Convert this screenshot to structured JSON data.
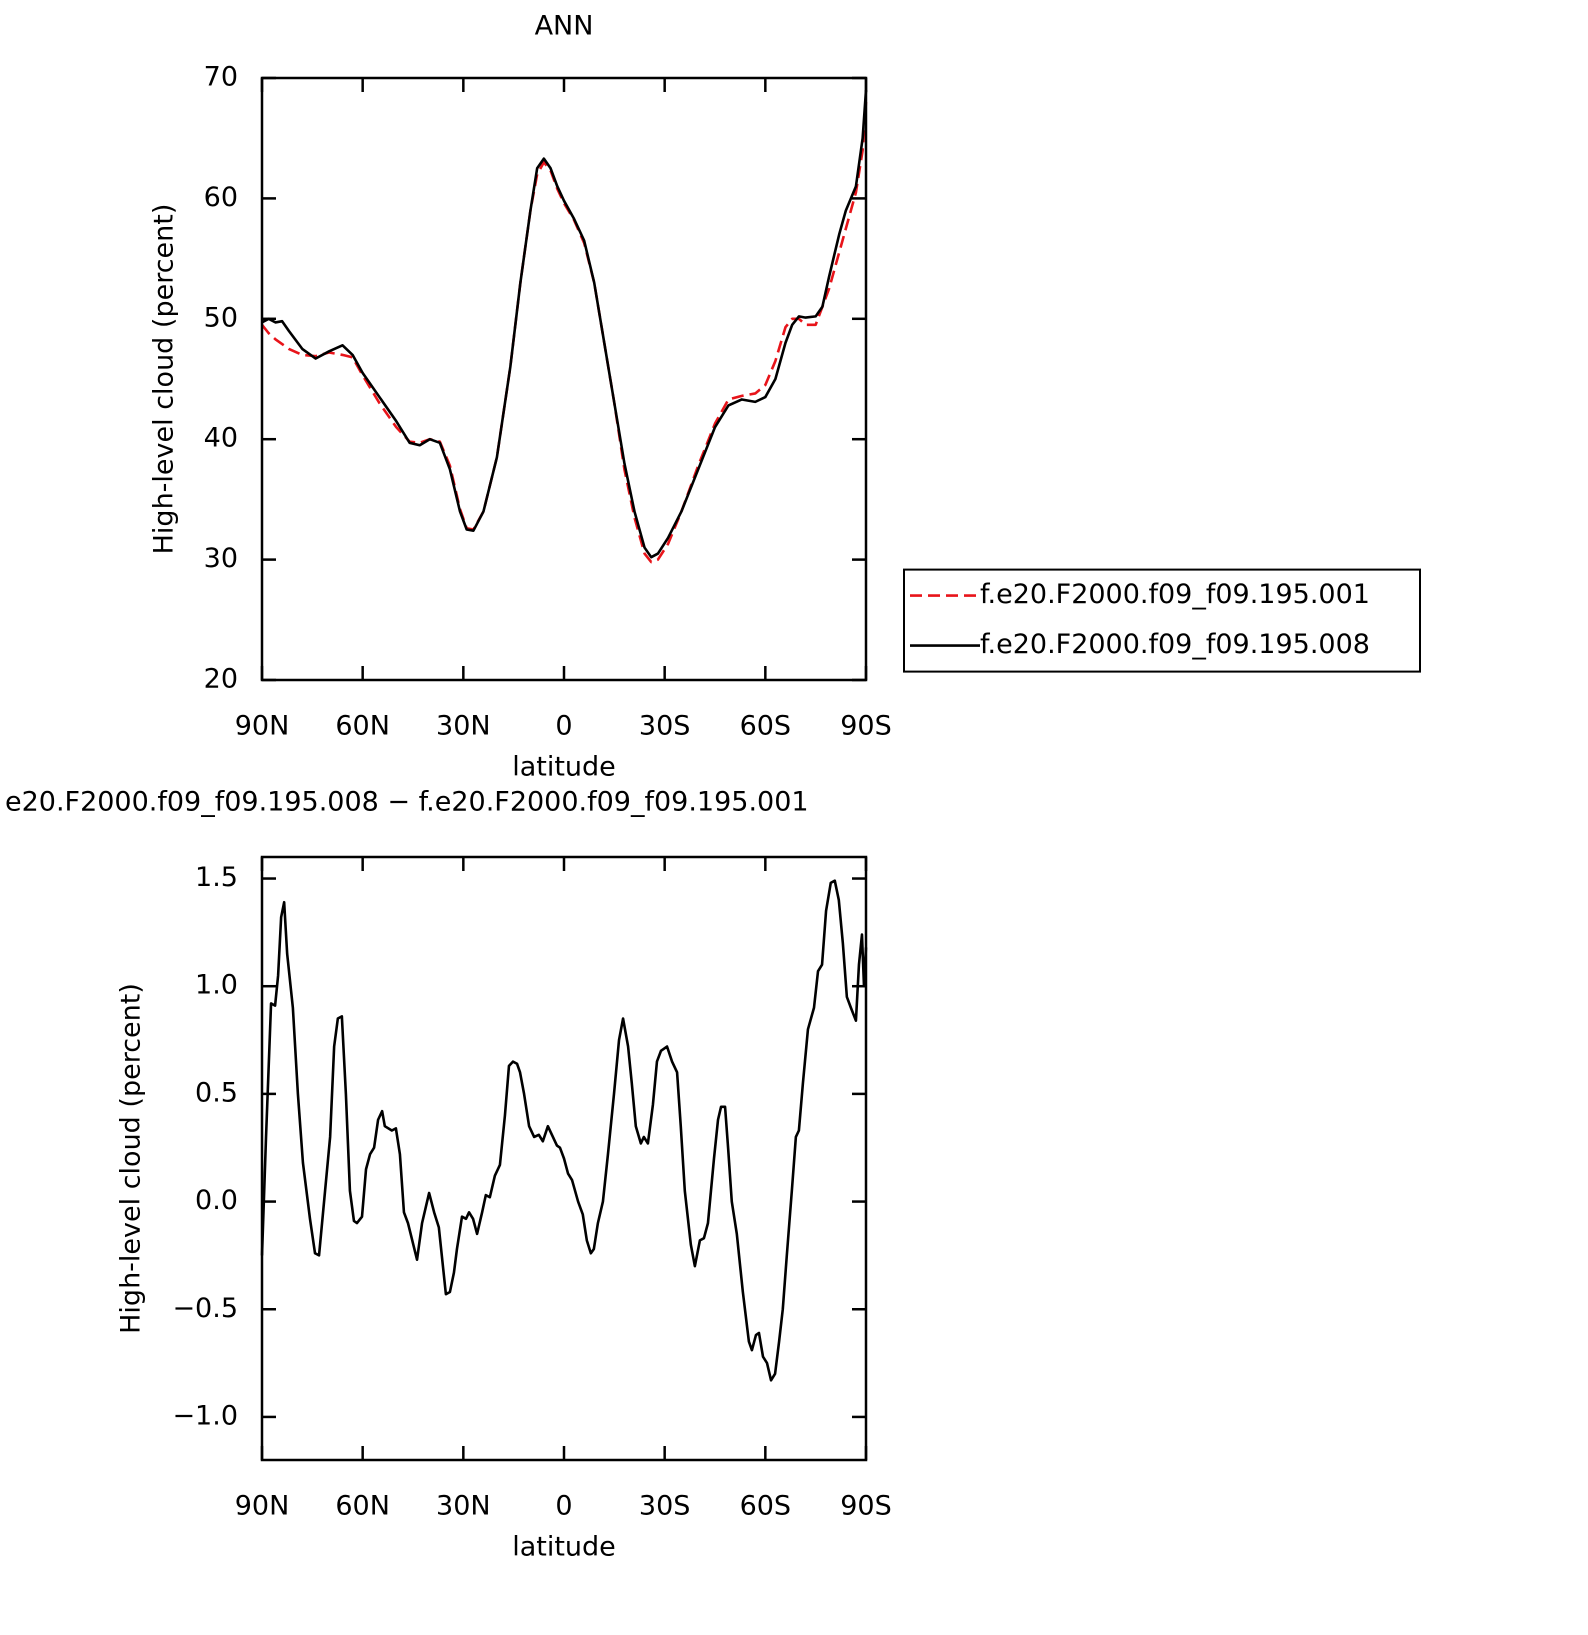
{
  "chart_data": [
    {
      "type": "line",
      "title": "ANN",
      "xlabel": "latitude",
      "ylabel": "High-level cloud (percent)",
      "xlim": [
        90,
        -90
      ],
      "xticks": [
        {
          "value": 90,
          "label": "90N"
        },
        {
          "value": 60,
          "label": "60N"
        },
        {
          "value": 30,
          "label": "30N"
        },
        0,
        {
          "value": -30,
          "label": "30S"
        },
        {
          "value": -60,
          "label": "60S"
        },
        {
          "value": -90,
          "label": "90S"
        }
      ],
      "ylim": [
        20,
        70
      ],
      "yticks": [
        20,
        30,
        40,
        50,
        60,
        70
      ],
      "legend": "right",
      "x": [
        90,
        88,
        86,
        84,
        82,
        78,
        74,
        70,
        66,
        63,
        60,
        55,
        50,
        46,
        43,
        40,
        37,
        34,
        31,
        29,
        27,
        24,
        20,
        16,
        13,
        10,
        8,
        6,
        4,
        2,
        0,
        -3,
        -6,
        -9,
        -12,
        -15,
        -18,
        -21,
        -24,
        -26,
        -28,
        -31,
        -35,
        -40,
        -45,
        -49,
        -53,
        -57,
        -60,
        -63,
        -66,
        -68,
        -70,
        -72,
        -75,
        -77,
        -79,
        -82,
        -84,
        -87,
        -89,
        -90
      ],
      "series": [
        {
          "name": "f.e20.F2000.f09_f09.195.001",
          "color": "#e8141a",
          "style": "dashed",
          "values": [
            49.5,
            48.8,
            48.3,
            47.9,
            47.5,
            47,
            46.9,
            47.2,
            47,
            46.8,
            45.3,
            43,
            41,
            39.8,
            39.7,
            40,
            39.8,
            37.8,
            34.2,
            32.6,
            32.5,
            34,
            38.5,
            46,
            53,
            59,
            62,
            63,
            62.3,
            60.8,
            59.6,
            58.2,
            56.3,
            53,
            48,
            43,
            37.5,
            33.5,
            30.5,
            29.8,
            30,
            31.3,
            34,
            37.8,
            41.3,
            43.3,
            43.6,
            43.8,
            44.5,
            46.5,
            49.3,
            50,
            50,
            49.5,
            49.5,
            51,
            52.5,
            55.5,
            57.5,
            60.5,
            64,
            68
          ]
        },
        {
          "name": "f.e20.F2000.f09_f09.195.008",
          "color": "#000000",
          "style": "solid",
          "values": [
            49.7,
            50,
            49.7,
            49.8,
            49,
            47.5,
            46.7,
            47.3,
            47.8,
            47,
            45.5,
            43.5,
            41.5,
            39.7,
            39.5,
            40,
            39.7,
            37.5,
            34,
            32.5,
            32.4,
            34,
            38.5,
            46,
            53,
            59,
            62.5,
            63.3,
            62.5,
            61,
            59.8,
            58.3,
            56.5,
            53,
            48,
            43,
            38,
            34,
            31,
            30.2,
            30.5,
            31.8,
            34,
            37.5,
            41,
            42.8,
            43.3,
            43.1,
            43.5,
            45,
            48,
            49.5,
            50.2,
            50.1,
            50.2,
            51,
            53.5,
            57,
            59,
            61,
            65,
            69
          ]
        }
      ]
    },
    {
      "type": "line",
      "title": "e20.F2000.f09_f09.195.008 − f.e20.F2000.f09_f09.195.001",
      "xlabel": "latitude",
      "ylabel": "High-level cloud (percent)",
      "xlim": [
        90,
        -90
      ],
      "xticks": [
        {
          "value": 90,
          "label": "90N"
        },
        {
          "value": 60,
          "label": "60N"
        },
        {
          "value": 30,
          "label": "30N"
        },
        0,
        {
          "value": -30,
          "label": "30S"
        },
        {
          "value": -60,
          "label": "60S"
        },
        {
          "value": -90,
          "label": "90S"
        }
      ],
      "ylim": [
        -1.2,
        1.6
      ],
      "yticks": [
        {
          "value": -1,
          "label": "−1.0"
        },
        {
          "value": -0.5,
          "label": "−0.5"
        },
        {
          "value": 0,
          "label": "0.0"
        },
        0.5,
        {
          "value": 1,
          "label": "1.0"
        },
        1.5
      ],
      "x": [
        90,
        88.8,
        87.3,
        86.1,
        85.2,
        84.3,
        83.4,
        82.5,
        80.8,
        79.3,
        77.8,
        75.7,
        74.2,
        73,
        71.2,
        69.7,
        68.5,
        67.4,
        66.2,
        65,
        63.8,
        62.6,
        61.7,
        60.2,
        59,
        57.8,
        56.6,
        55.4,
        54.2,
        53.4,
        51.3,
        50.1,
        48.9,
        47.7,
        46.5,
        43.8,
        42.3,
        40.2,
        38.7,
        37.3,
        35.2,
        34,
        32.8,
        31.9,
        30.4,
        29.2,
        28.3,
        27.1,
        25.9,
        24.4,
        23.3,
        22.1,
        20.6,
        19.1,
        17.6,
        16.4,
        15.2,
        14,
        13.1,
        11.9,
        10.4,
        8.9,
        7.5,
        6.3,
        4.8,
        3.6,
        2.1,
        1.2,
        0,
        -1.2,
        -2.4,
        -4.2,
        -5.6,
        -6.8,
        -8,
        -8.9,
        -10.1,
        -11.6,
        -13.1,
        -14.9,
        -16.4,
        -17.6,
        -19.1,
        -20.2,
        -21.4,
        -22.9,
        -23.8,
        -25,
        -26.5,
        -27.7,
        -28.9,
        -30.7,
        -32.2,
        -33.7,
        -34.8,
        -36,
        -37.8,
        -39,
        -40.5,
        -41.7,
        -42.9,
        -44.7,
        -45.9,
        -46.8,
        -48,
        -48.9,
        -50,
        -51.5,
        -53.3,
        -55.1,
        -56,
        -57.2,
        -58.1,
        -59.3,
        -60.5,
        -61.7,
        -62.9,
        -64.1,
        -65.2,
        -66.4,
        -67.9,
        -69.1,
        -70,
        -71.2,
        -72.7,
        -74.5,
        -75.7,
        -76.9,
        -78.1,
        -79.5,
        -80.7,
        -81.9,
        -83.1,
        -84.3,
        -85.5,
        -87,
        -87.9,
        -88.8,
        -89.4,
        -90
      ],
      "series": [
        {
          "color": "#000000",
          "style": "solid",
          "values": [
            -0.25,
            0.3,
            0.92,
            0.91,
            1.05,
            1.32,
            1.39,
            1.15,
            0.9,
            0.5,
            0.18,
            -0.08,
            -0.24,
            -0.25,
            0.05,
            0.3,
            0.72,
            0.85,
            0.86,
            0.5,
            0.05,
            -0.09,
            -0.1,
            -0.07,
            0.15,
            0.22,
            0.25,
            0.38,
            0.42,
            0.35,
            0.33,
            0.34,
            0.22,
            -0.05,
            -0.1,
            -0.27,
            -0.1,
            0.04,
            -0.05,
            -0.12,
            -0.43,
            -0.42,
            -0.33,
            -0.22,
            -0.07,
            -0.08,
            -0.05,
            -0.08,
            -0.15,
            -0.05,
            0.03,
            0.02,
            0.12,
            0.17,
            0.4,
            0.63,
            0.65,
            0.64,
            0.6,
            0.5,
            0.35,
            0.3,
            0.31,
            0.28,
            0.35,
            0.31,
            0.26,
            0.25,
            0.2,
            0.13,
            0.1,
            0,
            -0.06,
            -0.18,
            -0.24,
            -0.22,
            -0.1,
            0,
            0.22,
            0.5,
            0.75,
            0.85,
            0.72,
            0.55,
            0.35,
            0.27,
            0.3,
            0.27,
            0.45,
            0.65,
            0.7,
            0.72,
            0.65,
            0.6,
            0.35,
            0.05,
            -0.2,
            -0.3,
            -0.18,
            -0.17,
            -0.1,
            0.2,
            0.38,
            0.44,
            0.44,
            0.25,
            0,
            -0.15,
            -0.42,
            -0.65,
            -0.69,
            -0.62,
            -0.61,
            -0.72,
            -0.75,
            -0.83,
            -0.8,
            -0.65,
            -0.5,
            -0.25,
            0.05,
            0.3,
            0.33,
            0.55,
            0.8,
            0.9,
            1.07,
            1.1,
            1.35,
            1.48,
            1.49,
            1.4,
            1.2,
            0.95,
            0.9,
            0.84,
            1.1,
            1.24,
            1,
            1.18
          ]
        }
      ]
    }
  ]
}
